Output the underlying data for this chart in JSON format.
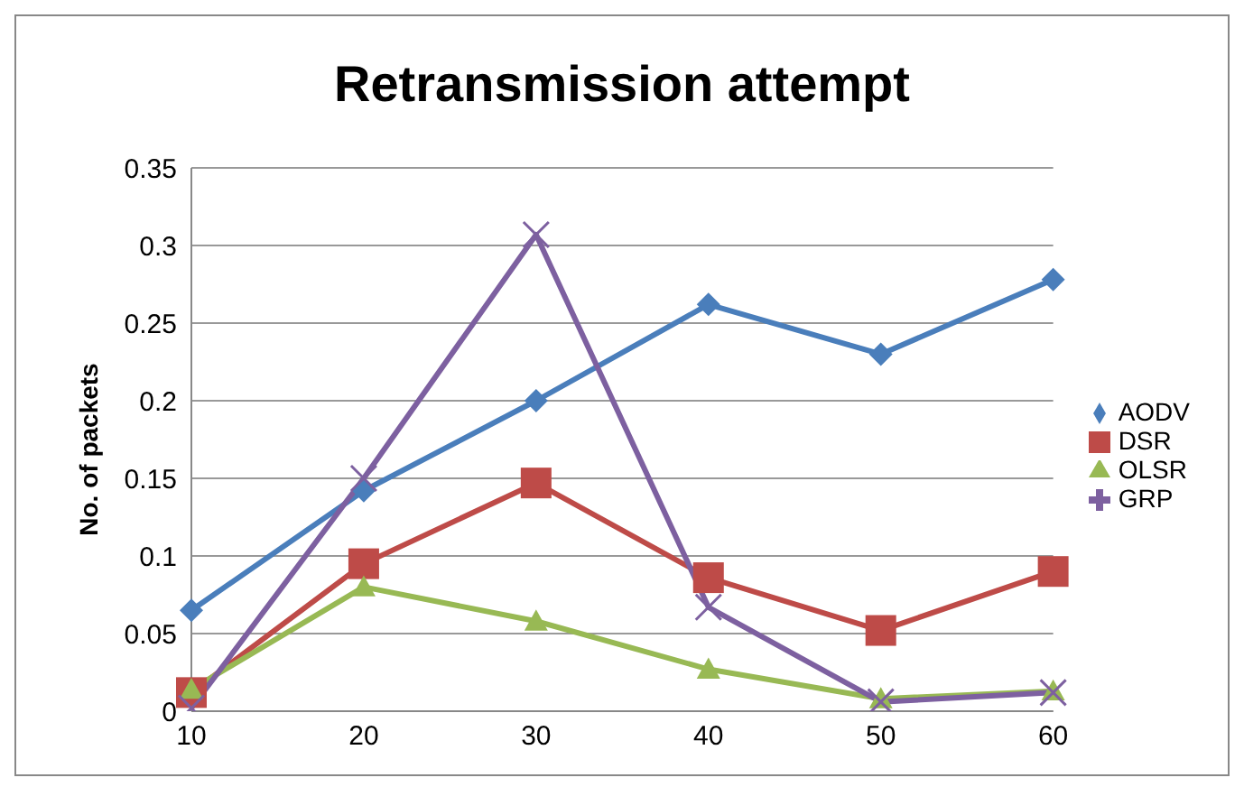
{
  "chart_data": {
    "type": "line",
    "title": "Retransmission attempt",
    "ylabel": "No. of packets",
    "categories": [
      "10",
      "20",
      "30",
      "40",
      "50",
      "60"
    ],
    "ylim": [
      0,
      0.35
    ],
    "yticks": [
      0,
      0.05,
      0.1,
      0.15,
      0.2,
      0.25,
      0.3,
      0.35
    ],
    "grid": "y",
    "legend": "right",
    "series": [
      {
        "name": "AODV",
        "color": "#4a7ebb",
        "marker": "diamond",
        "values": [
          0.065,
          0.142,
          0.2,
          0.262,
          0.23,
          0.278
        ]
      },
      {
        "name": "DSR",
        "color": "#be4b48",
        "marker": "square",
        "values": [
          0.012,
          0.095,
          0.147,
          0.086,
          0.052,
          0.09
        ]
      },
      {
        "name": "OLSR",
        "color": "#98b954",
        "marker": "triangle",
        "values": [
          0.014,
          0.08,
          0.058,
          0.027,
          0.008,
          0.013
        ]
      },
      {
        "name": "GRP",
        "color": "#7d60a0",
        "marker": "cross",
        "values": [
          0.002,
          0.15,
          0.307,
          0.067,
          0.006,
          0.012
        ]
      }
    ]
  }
}
